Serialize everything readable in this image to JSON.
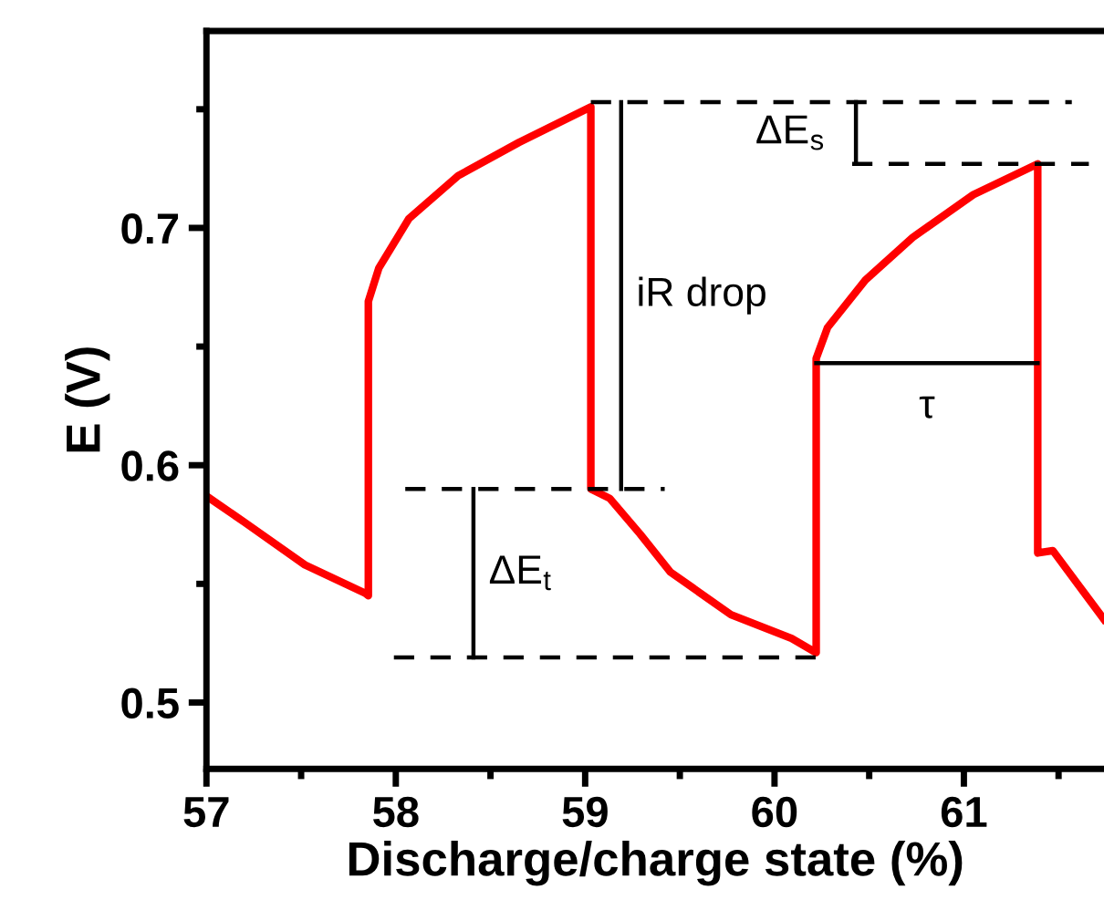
{
  "chart_data": {
    "type": "line",
    "xlabel": "Discharge/charge state (%)",
    "ylabel": "E (V)",
    "xlim": [
      57,
      61.74
    ],
    "ylim": [
      0.472,
      0.783
    ],
    "xticks": [
      57,
      {
        "value": 57.5,
        "label": null
      },
      58,
      {
        "value": 58.5,
        "label": null
      },
      59,
      {
        "value": 59.5,
        "label": null
      },
      60,
      {
        "value": 60.5,
        "label": null
      },
      61,
      {
        "value": 61.5,
        "label": null
      }
    ],
    "yticks": [
      {
        "value": 0.5,
        "label": "0.5"
      },
      {
        "value": 0.55,
        "label": null
      },
      {
        "value": 0.6,
        "label": "0.6"
      },
      {
        "value": 0.65,
        "label": null
      },
      {
        "value": 0.7,
        "label": "0.7"
      },
      {
        "value": 0.75,
        "label": null
      }
    ],
    "grid": false,
    "marker": "none",
    "series": [
      {
        "color": "#ff0000",
        "line_style": "solid",
        "x": [
          57,
          57.2,
          57.52,
          57.84,
          57.855,
          57.855,
          57.91,
          58.07,
          58.33,
          58.65,
          59.03,
          59.03,
          59.13,
          59.29,
          59.45,
          59.77,
          60.09,
          60.22,
          60.22,
          60.28,
          60.48,
          60.73,
          61.05,
          61.39,
          61.39,
          61.47,
          61.6,
          61.74
        ],
        "values": [
          0.587,
          0.576,
          0.558,
          0.546,
          0.545,
          0.669,
          0.683,
          0.704,
          0.722,
          0.736,
          0.751,
          0.59,
          0.586,
          0.571,
          0.555,
          0.537,
          0.527,
          0.521,
          0.645,
          0.658,
          0.678,
          0.696,
          0.714,
          0.727,
          0.563,
          0.564,
          0.55,
          0.535
        ]
      },
      {
        "color": "#000000",
        "line_style": "dashed",
        "x": [
          59.03,
          61.57
        ],
        "values": [
          0.753,
          0.753
        ]
      },
      {
        "color": "#000000",
        "line_style": "dashed",
        "x": [
          60.41,
          61.66
        ],
        "values": [
          0.727,
          0.727
        ]
      },
      {
        "color": "#000000",
        "line_style": "dashed",
        "x": [
          58.05,
          59.42
        ],
        "values": [
          0.59,
          0.59
        ]
      },
      {
        "color": "#000000",
        "line_style": "dashed",
        "x": [
          57.99,
          60.22
        ],
        "values": [
          0.519,
          0.519
        ]
      },
      {
        "color": "#000000",
        "line_style": "solid",
        "x": [
          59.19,
          59.19
        ],
        "values": [
          0.753,
          0.59
        ]
      },
      {
        "color": "#000000",
        "line_style": "solid",
        "x": [
          60.43,
          60.43
        ],
        "values": [
          0.753,
          0.727
        ]
      },
      {
        "color": "#000000",
        "line_style": "solid",
        "x": [
          58.41,
          58.41
        ],
        "values": [
          0.59,
          0.519
        ]
      },
      {
        "color": "#000000",
        "line_style": "solid",
        "x": [
          60.22,
          61.39
        ],
        "values": [
          0.643,
          0.643
        ]
      }
    ],
    "annotations": [
      "iR drop",
      "ΔE$_{s}$",
      "ΔE$_{t}$",
      "τ"
    ]
  }
}
